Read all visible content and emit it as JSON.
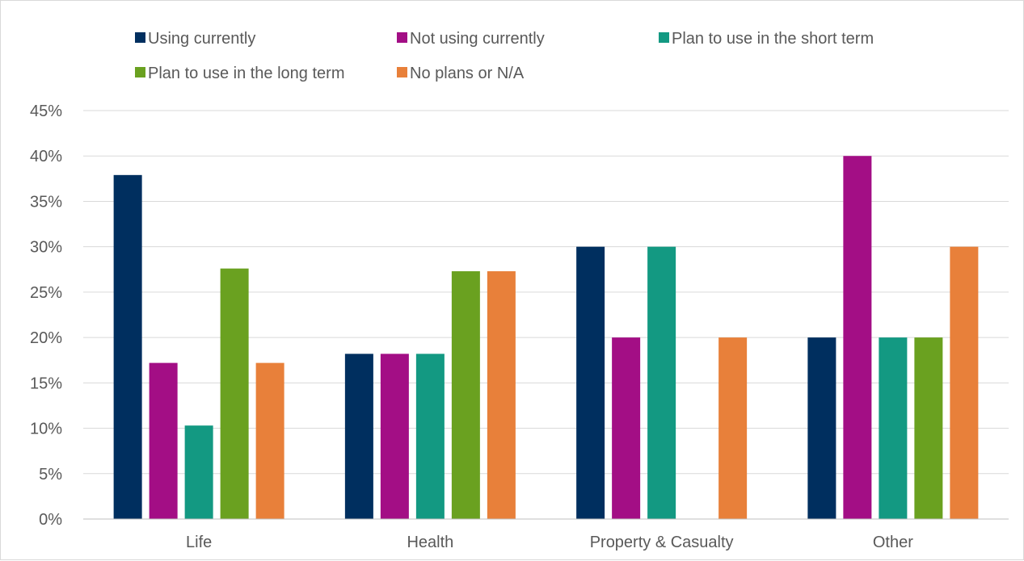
{
  "chart_data": {
    "type": "bar",
    "categories": [
      "Life",
      "Health",
      "Property & Casualty",
      "Other"
    ],
    "series": [
      {
        "name": "Using currently",
        "color": "#002f5f",
        "values": [
          37.9,
          18.2,
          30.0,
          20.0
        ]
      },
      {
        "name": "Not using currently",
        "color": "#a30e85",
        "values": [
          17.2,
          18.2,
          20.0,
          40.0
        ]
      },
      {
        "name": "Plan to use in the short term",
        "color": "#139982",
        "values": [
          10.3,
          18.2,
          30.0,
          20.0
        ]
      },
      {
        "name": "Plan to use in the long term",
        "color": "#6aa120",
        "values": [
          27.6,
          27.3,
          0,
          20.0
        ]
      },
      {
        "name": "No plans or N/A",
        "color": "#e8803a",
        "values": [
          17.2,
          27.3,
          20.0,
          30.0
        ]
      }
    ],
    "yticks": [
      "0%",
      "5%",
      "10%",
      "15%",
      "20%",
      "25%",
      "30%",
      "35%",
      "40%",
      "45%"
    ],
    "ylim": [
      0,
      45
    ],
    "grid": true,
    "legend_position": "top"
  }
}
